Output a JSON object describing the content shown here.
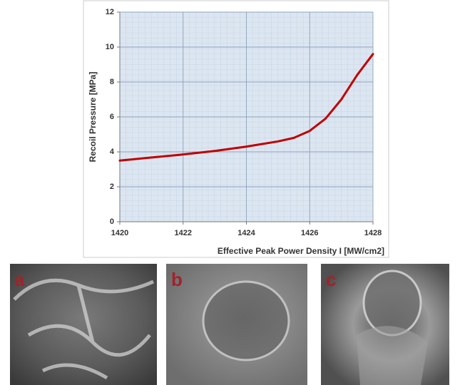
{
  "chart_data": {
    "type": "line",
    "x_label": "Effective Peak Power Density I [MW/cm2]",
    "y_label": "Recoil Pressure [MPa]",
    "x": [
      1420,
      1421,
      1422,
      1423,
      1424,
      1425,
      1425.5,
      1426,
      1426.5,
      1427,
      1427.5,
      1428
    ],
    "series": [
      {
        "color": "#c00000",
        "values": [
          3.5,
          3.68,
          3.85,
          4.05,
          4.3,
          4.6,
          4.8,
          5.2,
          5.9,
          7.0,
          8.4,
          9.6
        ]
      }
    ],
    "xlim": [
      1420,
      1428
    ],
    "xticks": [
      1420,
      1422,
      1424,
      1426,
      1428
    ],
    "ylim": [
      0,
      12
    ],
    "yticks": [
      0,
      2,
      4,
      6,
      8,
      10,
      12
    ],
    "grid": true
  },
  "image_panels": {
    "labels": [
      "a",
      "b",
      "c"
    ]
  }
}
